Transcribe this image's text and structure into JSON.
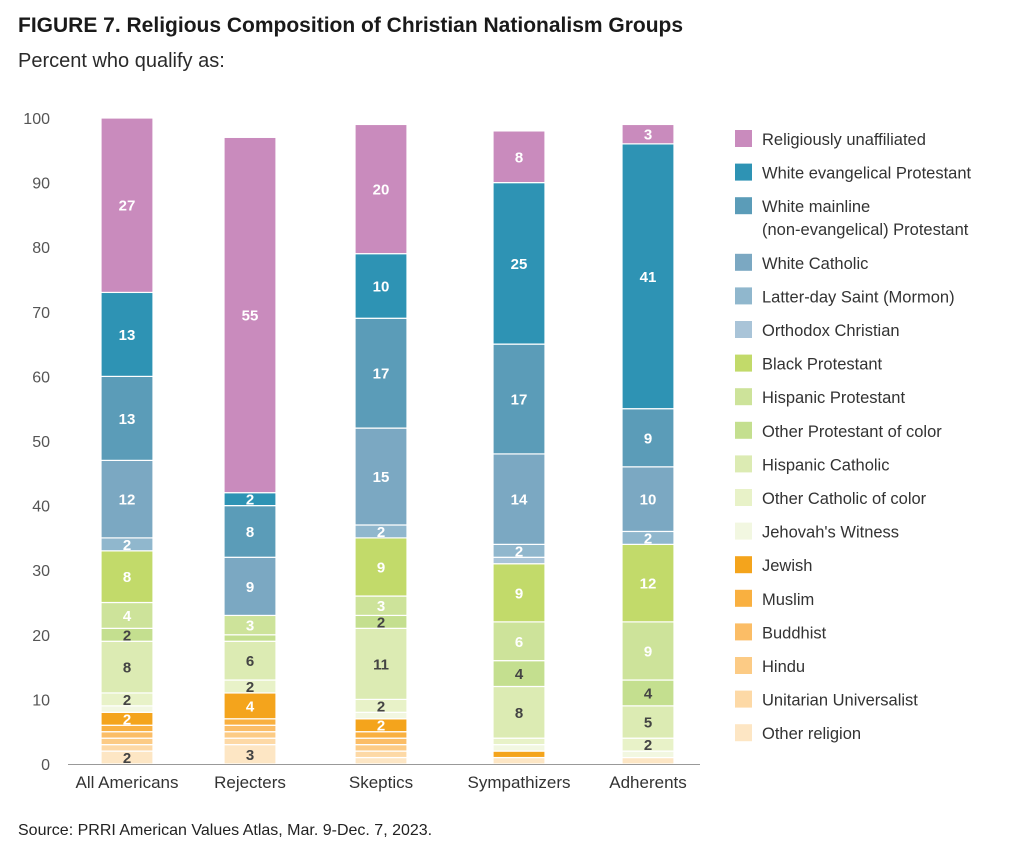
{
  "figure": {
    "title": "FIGURE 7.  Religious Composition of Christian Nationalism Groups",
    "subtitle": "Percent who qualify as:",
    "source": "Source: PRRI American Values Atlas, Mar. 9-Dec. 7, 2023."
  },
  "chart_data": {
    "type": "bar",
    "stacked": true,
    "categories": [
      "All Americans",
      "Rejecters",
      "Skeptics",
      "Sympathizers",
      "Adherents"
    ],
    "ylim": [
      0,
      100
    ],
    "yticks": [
      0,
      10,
      20,
      30,
      40,
      50,
      60,
      70,
      80,
      90,
      100
    ],
    "grid": false,
    "legend_position": "right",
    "series": [
      {
        "name": "Other religion",
        "color": "#fde6c4",
        "values": [
          2,
          3,
          1,
          1,
          1
        ],
        "labels": [
          "2",
          "3",
          "",
          "",
          ""
        ]
      },
      {
        "name": "Unitarian Universalist",
        "color": "#fdd9a6",
        "values": [
          1,
          1,
          1,
          0,
          0
        ],
        "labels": [
          "",
          "",
          "",
          "",
          ""
        ]
      },
      {
        "name": "Hindu",
        "color": "#fccb85",
        "values": [
          1,
          1,
          1,
          0,
          0
        ],
        "labels": [
          "",
          "",
          "",
          "",
          ""
        ]
      },
      {
        "name": "Buddhist",
        "color": "#fbbd66",
        "values": [
          1,
          1,
          1,
          0,
          0
        ],
        "labels": [
          "",
          "",
          "",
          "",
          ""
        ]
      },
      {
        "name": "Muslim",
        "color": "#f9b040",
        "values": [
          1,
          1,
          1,
          0,
          0
        ],
        "labels": [
          "",
          "",
          "",
          "",
          ""
        ]
      },
      {
        "name": "Jewish",
        "color": "#f4a41c",
        "values": [
          2,
          4,
          2,
          1,
          0
        ],
        "labels": [
          "2",
          "4",
          "2",
          "",
          ""
        ]
      },
      {
        "name": "Jehovah's Witness",
        "color": "#f2f7e1",
        "values": [
          1,
          0,
          1,
          1,
          1
        ],
        "labels": [
          "",
          "",
          "",
          "",
          ""
        ]
      },
      {
        "name": "Other Catholic of color",
        "color": "#e8f2c8",
        "values": [
          2,
          2,
          2,
          1,
          2
        ],
        "labels": [
          "2",
          "2",
          "2",
          "",
          "2"
        ]
      },
      {
        "name": "Hispanic Catholic",
        "color": "#dcebb3",
        "values": [
          8,
          6,
          11,
          8,
          5
        ],
        "labels": [
          "8",
          "6",
          "11",
          "8",
          "5"
        ]
      },
      {
        "name": "Other Protestant of color",
        "color": "#c4df8f",
        "values": [
          2,
          1,
          2,
          4,
          4
        ],
        "labels": [
          "2",
          "",
          "2",
          "4",
          "4"
        ]
      },
      {
        "name": "Hispanic Protestant",
        "color": "#cde39a",
        "values": [
          4,
          3,
          3,
          6,
          9
        ],
        "labels": [
          "4",
          "3",
          "3",
          "6",
          "9"
        ]
      },
      {
        "name": "Black Protestant",
        "color": "#c2da6a",
        "values": [
          8,
          0,
          9,
          9,
          12
        ],
        "labels": [
          "8",
          "",
          "9",
          "9",
          "12"
        ]
      },
      {
        "name": "Orthodox Christian",
        "color": "#a9c4d8",
        "values": [
          0,
          0,
          0,
          1,
          0
        ],
        "labels": [
          "",
          "",
          "",
          "",
          ""
        ]
      },
      {
        "name": "Latter-day Saint (Mormon)",
        "color": "#90b7cd",
        "values": [
          2,
          0,
          2,
          2,
          2
        ],
        "labels": [
          "2",
          "",
          "2",
          "2",
          "2"
        ]
      },
      {
        "name": "White Catholic",
        "color": "#7ba8c2",
        "values": [
          12,
          9,
          15,
          14,
          10
        ],
        "labels": [
          "12",
          "9",
          "15",
          "14",
          "10"
        ]
      },
      {
        "name": "White mainline\n(non-evangelical) Protestant",
        "color": "#5b9cb8",
        "values": [
          13,
          8,
          17,
          17,
          9
        ],
        "labels": [
          "13",
          "8",
          "17",
          "17",
          "9"
        ]
      },
      {
        "name": "White evangelical Protestant",
        "color": "#2e93b4",
        "values": [
          13,
          2,
          10,
          25,
          41
        ],
        "labels": [
          "13",
          "2",
          "10",
          "25",
          "41"
        ]
      },
      {
        "name": "Religiously unaffiliated",
        "color": "#c98bbd",
        "values": [
          27,
          55,
          20,
          8,
          3
        ],
        "labels": [
          "27",
          "55",
          "20",
          "8",
          "3"
        ]
      }
    ]
  }
}
